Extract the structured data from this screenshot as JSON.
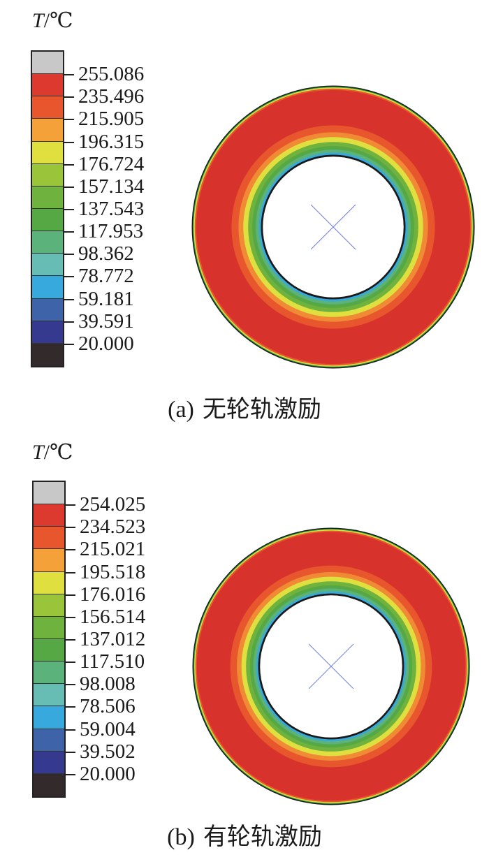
{
  "panels": [
    {
      "id": "a",
      "unit_symbol": "T",
      "unit_suffix": "/℃",
      "legend_values": [
        "255.086",
        "235.496",
        "215.905",
        "196.315",
        "176.724",
        "157.134",
        "137.543",
        "117.953",
        "98.362",
        "78.772",
        "59.181",
        "39.591",
        "20.000"
      ],
      "caption_label": "(a)",
      "caption_text": "无轮轨激励"
    },
    {
      "id": "b",
      "unit_symbol": "T",
      "unit_suffix": "/℃",
      "legend_values": [
        "254.025",
        "234.523",
        "215.021",
        "195.518",
        "176.016",
        "156.514",
        "137.012",
        "117.510",
        "98.008",
        "78.506",
        "59.004",
        "39.502",
        "20.000"
      ],
      "caption_label": "(b)",
      "caption_text": "有轮轨激励"
    }
  ],
  "colors": {
    "legend_swatches": [
      "#c8c8c8",
      "#dc3a2e",
      "#e8562e",
      "#f5a13a",
      "#dfe03f",
      "#9ac43a",
      "#6fb33e",
      "#55a843",
      "#5bb27a",
      "#67bcb3",
      "#38a9dc",
      "#3e63a8",
      "#363a8e",
      "#332b2b"
    ],
    "ring_bands_outer_to_inner": [
      "#2f9d3a",
      "#dfe03f",
      "#e8562e",
      "#d8322c",
      "#d8322c",
      "#e8562e",
      "#f08a34",
      "#dfe03f",
      "#6fb33e",
      "#55a843",
      "#5bb27a",
      "#38a9dc",
      "#222222"
    ],
    "center_cross": "#6c7fd0"
  }
}
